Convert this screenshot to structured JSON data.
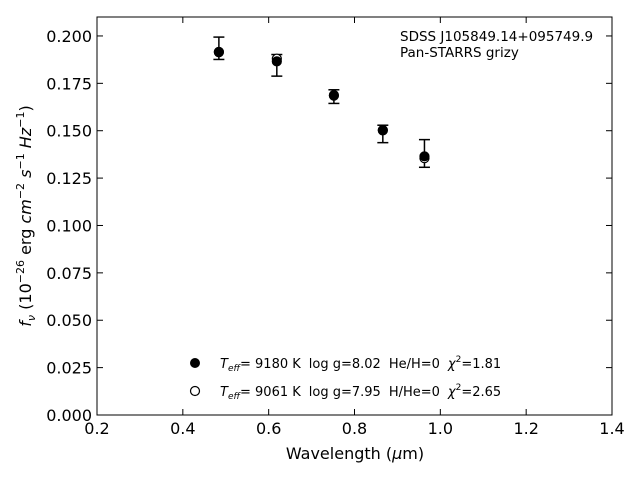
{
  "chart_data": {
    "type": "scatter",
    "title": "",
    "xlabel": "Wavelength (μm)",
    "ylabel": "f_ν (10^-26 erg cm^-2 s^-1 Hz^-1)",
    "xlim": [
      0.2,
      1.4
    ],
    "ylim": [
      0.0,
      0.21
    ],
    "xticks": [
      "0.2",
      "0.4",
      "0.6",
      "0.8",
      "1.0",
      "1.2",
      "1.4"
    ],
    "yticks": [
      "0.000",
      "0.025",
      "0.050",
      "0.075",
      "0.100",
      "0.125",
      "0.150",
      "0.175",
      "0.200"
    ],
    "annotation": {
      "line1": "SDSS J105849.14+095749.9",
      "line2": "Pan-STARRS grizy"
    },
    "observed": {
      "x": [
        0.484,
        0.619,
        0.752,
        0.866,
        0.963
      ],
      "y": [
        0.1935,
        0.1845,
        0.168,
        0.1483,
        0.138
      ],
      "err": [
        0.0059,
        0.0057,
        0.0036,
        0.0046,
        0.0073
      ]
    },
    "series": [
      {
        "name": "Teff= 9180 K log g=8.02 He/H=0 χ2=1.81",
        "marker": "filled",
        "x": [
          0.484,
          0.619,
          0.752,
          0.866,
          0.963
        ],
        "y": [
          0.1914,
          0.1866,
          0.1685,
          0.1502,
          0.1365
        ]
      },
      {
        "name": "Teff= 9061 K log g=7.95 H/He=0 χ2=2.65",
        "marker": "open",
        "x": [
          0.484,
          0.619,
          0.752,
          0.866,
          0.963
        ],
        "y": [
          0.1916,
          0.188,
          0.1688,
          0.1503,
          0.1355
        ]
      }
    ],
    "legend": {
      "placement": "lower-center",
      "entries": [
        {
          "teff_sym": "T",
          "teff_sub": "eff",
          "teff": "=  9180 K",
          "logg": "log g=8.02",
          "comp": "He/H=0",
          "chi_sym": "χ",
          "chi_sup": "2",
          "chi": "=1.81"
        },
        {
          "teff_sym": "T",
          "teff_sub": "eff",
          "teff": "=  9061 K",
          "logg": "log g=7.95",
          "comp": "H/He=0",
          "chi_sym": "χ",
          "chi_sup": "2",
          "chi": "=2.65"
        }
      ]
    }
  }
}
